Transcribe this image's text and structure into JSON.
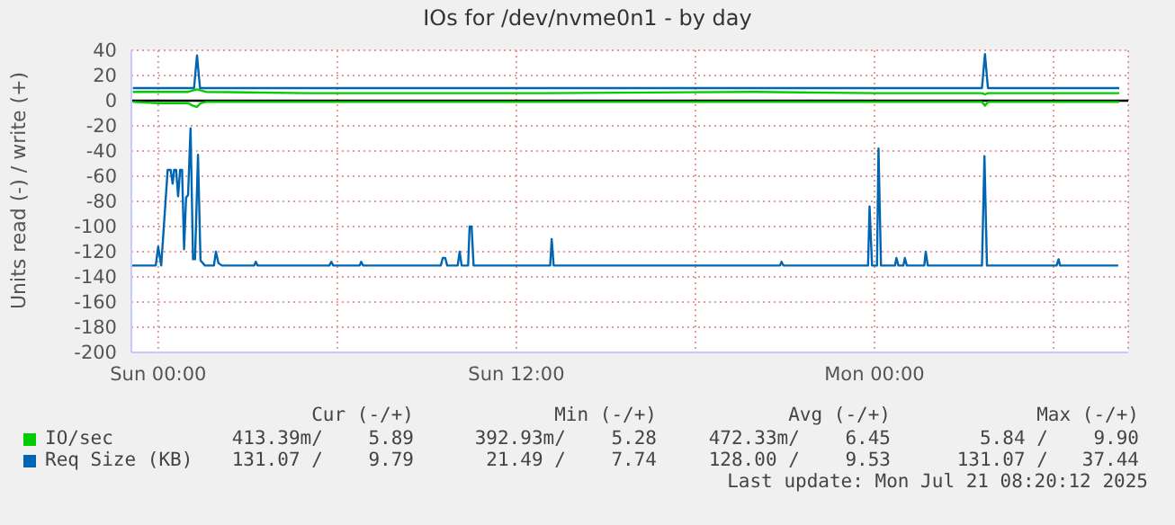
{
  "chart_data": {
    "type": "line",
    "title": "IOs for /dev/nvme0n1 - by day",
    "ylabel": "Units read (-) / write (+)",
    "xlim": [
      "2025-07-19T23:06",
      "2025-07-21T08:30"
    ],
    "xticks": [
      {
        "value": "2025-07-20T00:00",
        "label": "Sun 00:00"
      },
      {
        "value": "2025-07-20T06:00",
        "label": null
      },
      {
        "value": "2025-07-20T12:00",
        "label": "Sun 12:00"
      },
      {
        "value": "2025-07-20T18:00",
        "label": null
      },
      {
        "value": "2025-07-21T00:00",
        "label": "Mon 00:00"
      },
      {
        "value": "2025-07-21T06:00",
        "label": null
      }
    ],
    "ylim": [
      -200,
      40
    ],
    "yticks": [
      -200,
      -180,
      -160,
      -140,
      -120,
      -100,
      -80,
      -60,
      -40,
      -20,
      0,
      20,
      40
    ],
    "grid": true,
    "legend": "bottom left",
    "marker": "none",
    "line_style": "solid",
    "ref_lines": [
      {
        "axis": "y",
        "value": 0,
        "label": null,
        "color": "#000000"
      }
    ],
    "series": [
      {
        "name": "IO/sec",
        "color": "#00cc00",
        "x": [
          "2025-07-19T23:09",
          "2025-07-20T00:00",
          "2025-07-20T01:00",
          "2025-07-20T01:18",
          "2025-07-20T01:36",
          "2025-07-20T05:00",
          "2025-07-20T10:00",
          "2025-07-20T13:00",
          "2025-07-20T20:00",
          "2025-07-21T00:00",
          "2025-07-21T03:36",
          "2025-07-21T03:42",
          "2025-07-21T03:48",
          "2025-07-21T08:12"
        ],
        "values": [
          7,
          7,
          7,
          9,
          7,
          6,
          6,
          6,
          7,
          6,
          6,
          5,
          6,
          6
        ]
      },
      {
        "color": "#00cc00",
        "x": [
          "2025-07-19T23:09",
          "2025-07-20T00:00",
          "2025-07-20T01:00",
          "2025-07-20T01:10",
          "2025-07-20T01:18",
          "2025-07-20T01:25",
          "2025-07-20T01:36",
          "2025-07-20T10:00",
          "2025-07-20T20:00",
          "2025-07-21T00:00",
          "2025-07-21T03:36",
          "2025-07-21T03:42",
          "2025-07-21T03:48",
          "2025-07-21T08:12"
        ],
        "values": [
          -1,
          -2,
          -2,
          -4,
          -5,
          -2,
          -1,
          -1,
          -1,
          -1,
          -1,
          -4,
          -1,
          -1
        ]
      },
      {
        "name": "Req Size (KB)",
        "color": "#0066b3",
        "x": [
          "2025-07-19T23:09",
          "2025-07-20T00:00",
          "2025-07-20T01:12",
          "2025-07-20T01:18",
          "2025-07-20T01:24",
          "2025-07-20T10:00",
          "2025-07-20T20:00",
          "2025-07-21T03:36",
          "2025-07-21T03:42",
          "2025-07-21T03:48",
          "2025-07-21T08:12"
        ],
        "values": [
          10,
          10,
          10,
          36,
          10,
          10,
          10,
          10,
          37,
          10,
          10
        ]
      },
      {
        "color": "#0066b3",
        "x": [
          "2025-07-19T23:07",
          "2025-07-19T23:55",
          "2025-07-20T00:00",
          "2025-07-20T00:06",
          "2025-07-20T00:19",
          "2025-07-20T00:25",
          "2025-07-20T00:29",
          "2025-07-20T00:32",
          "2025-07-20T00:36",
          "2025-07-20T00:40",
          "2025-07-20T00:44",
          "2025-07-20T00:48",
          "2025-07-20T00:52",
          "2025-07-20T00:56",
          "2025-07-20T01:00",
          "2025-07-20T01:05",
          "2025-07-20T01:10",
          "2025-07-20T01:14",
          "2025-07-20T01:20",
          "2025-07-20T01:25",
          "2025-07-20T01:34",
          "2025-07-20T01:52",
          "2025-07-20T01:56",
          "2025-07-20T02:01",
          "2025-07-20T02:08",
          "2025-07-20T03:13",
          "2025-07-20T03:16",
          "2025-07-20T03:20",
          "2025-07-20T05:44",
          "2025-07-20T05:48",
          "2025-07-20T05:52",
          "2025-07-20T06:45",
          "2025-07-20T06:48",
          "2025-07-20T06:52",
          "2025-07-20T09:28",
          "2025-07-20T09:32",
          "2025-07-20T09:37",
          "2025-07-20T09:41",
          "2025-07-20T10:02",
          "2025-07-20T10:06",
          "2025-07-20T10:10",
          "2025-07-20T10:23",
          "2025-07-20T10:26",
          "2025-07-20T10:30",
          "2025-07-20T10:34",
          "2025-07-20T13:08",
          "2025-07-20T13:11",
          "2025-07-20T13:15",
          "2025-07-20T20:50",
          "2025-07-20T20:53",
          "2025-07-20T20:57",
          "2025-07-20T23:47",
          "2025-07-20T23:50",
          "2025-07-20T23:55",
          "2025-07-21T00:05",
          "2025-07-21T00:08",
          "2025-07-21T00:13",
          "2025-07-21T00:41",
          "2025-07-21T00:44",
          "2025-07-21T00:48",
          "2025-07-21T00:58",
          "2025-07-21T01:01",
          "2025-07-21T01:05",
          "2025-07-21T01:40",
          "2025-07-21T01:43",
          "2025-07-21T01:47",
          "2025-07-21T03:36",
          "2025-07-21T03:41",
          "2025-07-21T03:46",
          "2025-07-21T06:06",
          "2025-07-21T06:10",
          "2025-07-21T06:13",
          "2025-07-21T08:10"
        ],
        "values": [
          -131,
          -131,
          -116,
          -131,
          -55,
          -55,
          -66,
          -55,
          -55,
          -76,
          -55,
          -55,
          -118,
          -77,
          -75,
          -22,
          -126,
          -126,
          -43,
          -127,
          -131,
          -131,
          -120,
          -129,
          -131,
          -131,
          -128,
          -131,
          -131,
          -128,
          -131,
          -131,
          -128,
          -131,
          -131,
          -125,
          -125,
          -131,
          -131,
          -120,
          -131,
          -131,
          -100,
          -100,
          -131,
          -131,
          -110,
          -131,
          -131,
          -128,
          -131,
          -131,
          -84,
          -131,
          -131,
          -38,
          -131,
          -131,
          -125,
          -131,
          -131,
          -125,
          -131,
          -131,
          -120,
          -131,
          -131,
          -44,
          -131,
          -131,
          -126,
          -131,
          -131
        ]
      }
    ],
    "annotations": [
      "Cur (-/+)",
      "Min (-/+)",
      "Avg (-/+)",
      "Max (-/+)",
      "413.39m/    5.89",
      "392.93m/    5.28",
      "472.33m/    6.45",
      "5.84 /    9.90",
      "131.07 /    9.79",
      "21.49 /    7.74",
      "128.00 /    9.53",
      "131.07 /   37.44",
      "Last update: Mon Jul 21 08:20:12 2025"
    ]
  }
}
